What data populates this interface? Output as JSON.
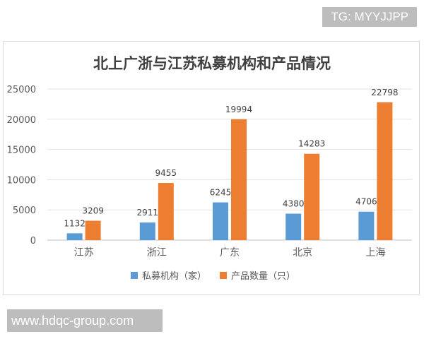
{
  "watermarks": {
    "top": "TG: MYYJJPP",
    "bottom": "www.hdqc-group.com"
  },
  "chart_data": {
    "type": "bar",
    "title": "北上广浙与江苏私募机构和产品情况",
    "xlabel": "",
    "ylabel": "",
    "categories": [
      "江苏",
      "浙江",
      "广东",
      "北京",
      "上海"
    ],
    "series": [
      {
        "name": "私募机构（家）",
        "values": [
          1132,
          2911,
          6245,
          4380,
          4706
        ],
        "color": "#5b9bd5"
      },
      {
        "name": "产品数量（只）",
        "values": [
          3209,
          9455,
          19994,
          14283,
          22798
        ],
        "color": "#ed7d31"
      }
    ],
    "ylim": [
      0,
      25000
    ],
    "yticks": [
      "0",
      "5000",
      "10000",
      "15000",
      "20000",
      "25000"
    ],
    "grid": true,
    "legend": "bottom"
  }
}
